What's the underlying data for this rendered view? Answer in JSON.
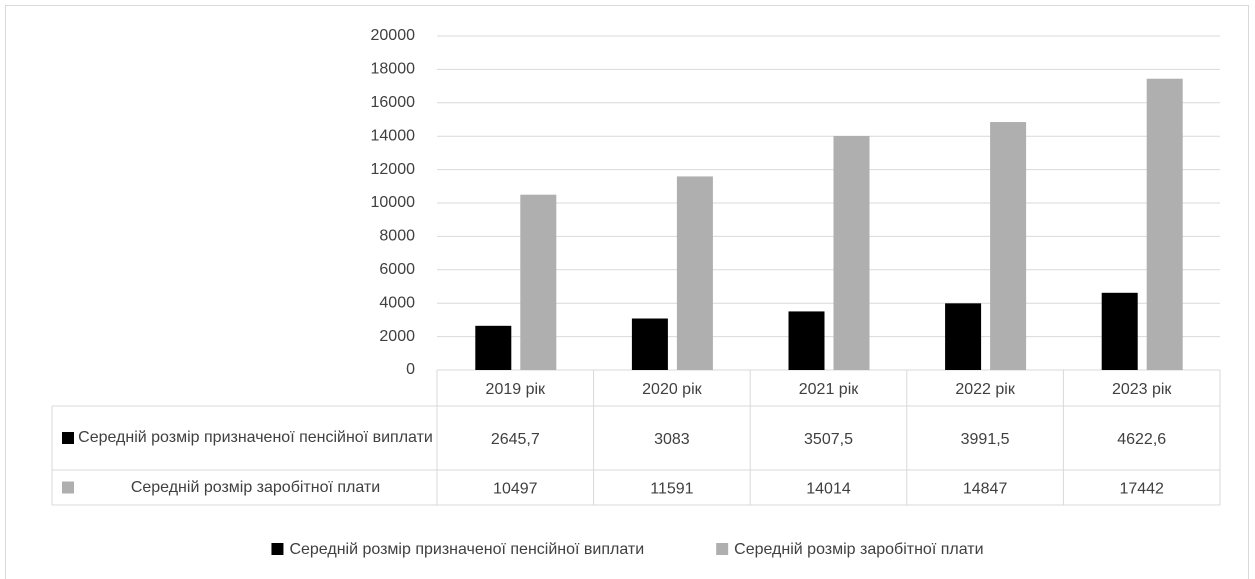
{
  "chart_data": {
    "type": "bar",
    "categories": [
      "2019 рік",
      "2020 рік",
      "2021 рік",
      "2022 рік",
      "2023 рік"
    ],
    "series": [
      {
        "name": "Середній розмір призначеної пенсійної виплати",
        "color": "#000000",
        "values": [
          2645.7,
          3083,
          3507.5,
          3991.5,
          4622.6
        ],
        "value_labels": [
          "2645,7",
          "3083",
          "3507,5",
          "3991,5",
          "4622,6"
        ]
      },
      {
        "name": "Середній розмір заробітної плати",
        "color": "#afafaf",
        "values": [
          10497,
          11591,
          14014,
          14847,
          17442
        ]
      }
    ],
    "ylim": [
      0,
      20000
    ],
    "yticks": [
      0,
      2000,
      4000,
      6000,
      8000,
      10000,
      12000,
      14000,
      16000,
      18000,
      20000
    ],
    "grid": true,
    "data_table": true,
    "legend": "bottom"
  }
}
